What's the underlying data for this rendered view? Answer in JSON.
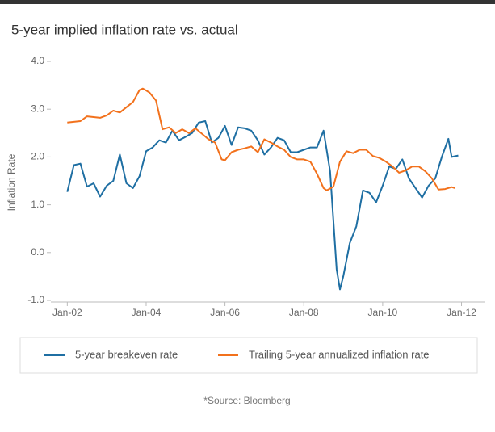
{
  "chart_data": {
    "type": "line",
    "title": "5-year implied inflation rate vs. actual",
    "y_label": "Inflation Rate",
    "source": "*Source: Bloomberg",
    "ylim": [
      -1,
      4
    ],
    "yticks": [
      {
        "value": 4,
        "label": "4.0"
      },
      {
        "value": 3,
        "label": "3.0"
      },
      {
        "value": 2,
        "label": "2.0"
      },
      {
        "value": 1,
        "label": "1.0"
      },
      {
        "value": 0,
        "label": "0.0"
      },
      {
        "value": -1,
        "label": "-1.0"
      }
    ],
    "xlim": [
      "2001-08",
      "2012-08"
    ],
    "xticks": [
      {
        "value": "2002-01",
        "label": "Jan-02"
      },
      {
        "value": "2004-01",
        "label": "Jan-04"
      },
      {
        "value": "2006-01",
        "label": "Jan-06"
      },
      {
        "value": "2008-01",
        "label": "Jan-08"
      },
      {
        "value": "2010-01",
        "label": "Jan-10"
      },
      {
        "value": "2012-01",
        "label": "Jan-12"
      }
    ],
    "series": [
      {
        "name": "5-year breakeven rate",
        "color": "#1f6fa3",
        "x": [
          "2002-01",
          "2002-03",
          "2002-05",
          "2002-07",
          "2002-09",
          "2002-11",
          "2003-01",
          "2003-03",
          "2003-05",
          "2003-07",
          "2003-09",
          "2003-11",
          "2004-01",
          "2004-03",
          "2004-05",
          "2004-07",
          "2004-09",
          "2004-11",
          "2005-01",
          "2005-03",
          "2005-05",
          "2005-07",
          "2005-09",
          "2005-11",
          "2006-01",
          "2006-03",
          "2006-05",
          "2006-07",
          "2006-09",
          "2006-11",
          "2007-01",
          "2007-03",
          "2007-05",
          "2007-07",
          "2007-09",
          "2007-11",
          "2008-01",
          "2008-03",
          "2008-05",
          "2008-07",
          "2008-09",
          "2008-11",
          "2008-12",
          "2009-01",
          "2009-03",
          "2009-05",
          "2009-07",
          "2009-09",
          "2009-11",
          "2010-01",
          "2010-03",
          "2010-05",
          "2010-07",
          "2010-09",
          "2010-11",
          "2011-01",
          "2011-03",
          "2011-05",
          "2011-07",
          "2011-09",
          "2011-10",
          "2011-12"
        ],
        "values": [
          1.27,
          1.83,
          1.86,
          1.38,
          1.45,
          1.17,
          1.4,
          1.5,
          2.05,
          1.45,
          1.35,
          1.6,
          2.12,
          2.2,
          2.35,
          2.3,
          2.55,
          2.35,
          2.42,
          2.5,
          2.72,
          2.75,
          2.3,
          2.4,
          2.65,
          2.25,
          2.62,
          2.6,
          2.55,
          2.35,
          2.05,
          2.2,
          2.4,
          2.35,
          2.1,
          2.1,
          2.15,
          2.2,
          2.2,
          2.55,
          1.7,
          -0.35,
          -0.77,
          -0.5,
          0.2,
          0.55,
          1.3,
          1.25,
          1.05,
          1.4,
          1.8,
          1.75,
          1.95,
          1.55,
          1.35,
          1.15,
          1.4,
          1.55,
          2.0,
          2.38,
          2.0,
          2.03
        ]
      },
      {
        "name": "Trailing 5-year annualized inflation rate",
        "color": "#f2711c",
        "x": [
          "2002-01",
          "2002-05",
          "2002-07",
          "2002-11",
          "2003-01",
          "2003-03",
          "2003-05",
          "2003-09",
          "2003-11",
          "2003-12",
          "2004-02",
          "2004-04",
          "2004-06",
          "2004-08",
          "2004-10",
          "2004-12",
          "2005-02",
          "2005-04",
          "2005-08",
          "2005-10",
          "2005-12",
          "2006-01",
          "2006-03",
          "2006-05",
          "2006-07",
          "2006-09",
          "2006-11",
          "2007-01",
          "2007-03",
          "2007-05",
          "2007-07",
          "2007-09",
          "2007-11",
          "2008-01",
          "2008-03",
          "2008-05",
          "2008-07",
          "2008-08",
          "2008-10",
          "2008-12",
          "2009-02",
          "2009-04",
          "2009-06",
          "2009-08",
          "2009-10",
          "2009-12",
          "2010-02",
          "2010-04",
          "2010-06",
          "2010-08",
          "2010-10",
          "2010-12",
          "2011-02",
          "2011-04",
          "2011-06",
          "2011-08",
          "2011-10",
          "2011-11"
        ],
        "values": [
          2.72,
          2.75,
          2.85,
          2.82,
          2.87,
          2.97,
          2.93,
          3.15,
          3.4,
          3.43,
          3.35,
          3.18,
          2.58,
          2.62,
          2.5,
          2.58,
          2.5,
          2.6,
          2.37,
          2.3,
          1.95,
          1.93,
          2.1,
          2.15,
          2.18,
          2.22,
          2.1,
          2.37,
          2.3,
          2.22,
          2.15,
          2.0,
          1.95,
          1.95,
          1.9,
          1.65,
          1.35,
          1.3,
          1.38,
          1.9,
          2.12,
          2.08,
          2.15,
          2.15,
          2.02,
          1.98,
          1.9,
          1.8,
          1.67,
          1.72,
          1.8,
          1.8,
          1.7,
          1.55,
          1.32,
          1.33,
          1.37,
          1.35
        ]
      }
    ]
  }
}
